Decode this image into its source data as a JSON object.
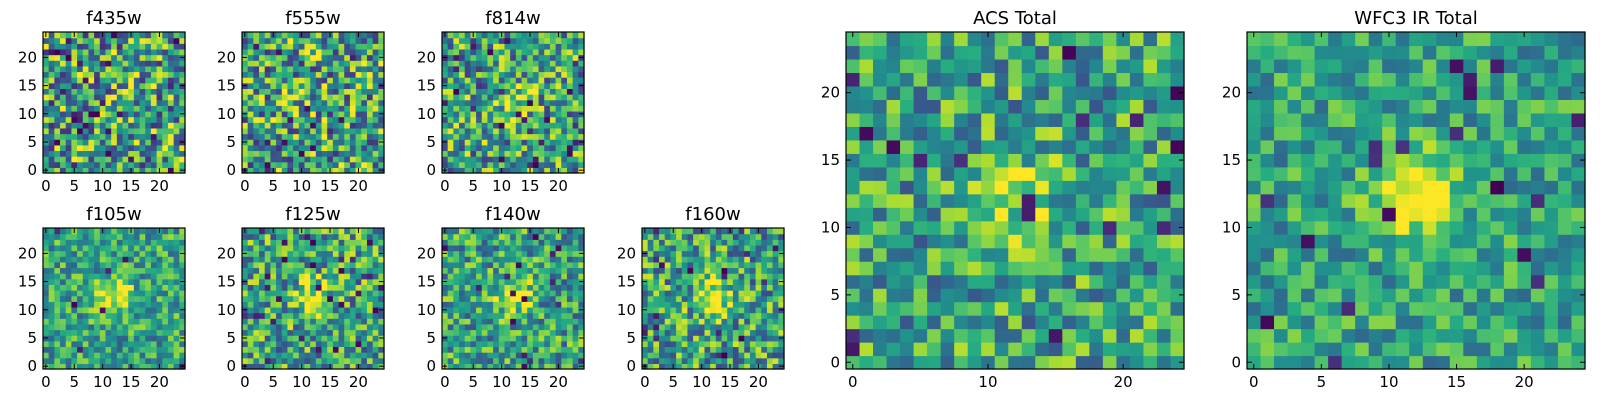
{
  "figure": {
    "colormap": "viridis",
    "background": "#ffffff"
  },
  "chart_data": [
    {
      "type": "heatmap",
      "title": "f435w",
      "xlim": [
        0,
        25
      ],
      "ylim": [
        0,
        25
      ],
      "xticks": [
        0,
        5,
        10,
        15,
        20
      ],
      "yticks": [
        0,
        5,
        10,
        15,
        20
      ],
      "source_peak": 0.0,
      "noise": 0.55,
      "dark_pixels": 0.05,
      "seed": 11
    },
    {
      "type": "heatmap",
      "title": "f555w",
      "xlim": [
        0,
        25
      ],
      "ylim": [
        0,
        25
      ],
      "xticks": [
        0,
        5,
        10,
        15,
        20
      ],
      "yticks": [
        0,
        5,
        10,
        15,
        20
      ],
      "source_peak": 0.05,
      "noise": 0.55,
      "dark_pixels": 0.02,
      "seed": 23
    },
    {
      "type": "heatmap",
      "title": "f814w",
      "xlim": [
        0,
        25
      ],
      "ylim": [
        0,
        25
      ],
      "xticks": [
        0,
        5,
        10,
        15,
        20
      ],
      "yticks": [
        0,
        5,
        10,
        15,
        20
      ],
      "source_peak": 0.3,
      "noise": 0.5,
      "dark_pixels": 0.03,
      "seed": 37
    },
    {
      "type": "heatmap",
      "title": "f105w",
      "xlim": [
        0,
        25
      ],
      "ylim": [
        0,
        25
      ],
      "xticks": [
        0,
        5,
        10,
        15,
        20
      ],
      "yticks": [
        0,
        5,
        10,
        15,
        20
      ],
      "source_peak": 0.45,
      "noise": 0.35,
      "dark_pixels": 0.01,
      "seed": 41
    },
    {
      "type": "heatmap",
      "title": "f125w",
      "xlim": [
        0,
        25
      ],
      "ylim": [
        0,
        25
      ],
      "xticks": [
        0,
        5,
        10,
        15,
        20
      ],
      "yticks": [
        0,
        5,
        10,
        15,
        20
      ],
      "source_peak": 0.4,
      "noise": 0.45,
      "dark_pixels": 0.04,
      "seed": 53
    },
    {
      "type": "heatmap",
      "title": "f140w",
      "xlim": [
        0,
        25
      ],
      "ylim": [
        0,
        25
      ],
      "xticks": [
        0,
        5,
        10,
        15,
        20
      ],
      "yticks": [
        0,
        5,
        10,
        15,
        20
      ],
      "source_peak": 0.45,
      "noise": 0.4,
      "dark_pixels": 0.02,
      "seed": 67
    },
    {
      "type": "heatmap",
      "title": "f160w",
      "xlim": [
        0,
        25
      ],
      "ylim": [
        0,
        25
      ],
      "xticks": [
        0,
        5,
        10,
        15,
        20
      ],
      "yticks": [
        0,
        5,
        10,
        15,
        20
      ],
      "source_peak": 0.45,
      "noise": 0.45,
      "dark_pixels": 0.04,
      "seed": 79
    },
    {
      "type": "heatmap",
      "title": "ACS Total",
      "xlim": [
        0,
        25
      ],
      "ylim": [
        0,
        25
      ],
      "xticks": [
        0,
        10,
        20
      ],
      "yticks": [
        0,
        5,
        10,
        15,
        20
      ],
      "source_peak": 0.35,
      "noise": 0.4,
      "dark_pixels": 0.025,
      "seed": 83
    },
    {
      "type": "heatmap",
      "title": "WFC3 IR Total",
      "xlim": [
        0,
        25
      ],
      "ylim": [
        0,
        25
      ],
      "xticks": [
        0,
        5,
        10,
        15,
        20
      ],
      "yticks": [
        0,
        5,
        10,
        15,
        20
      ],
      "source_peak": 0.55,
      "noise": 0.3,
      "dark_pixels": 0.03,
      "seed": 97
    }
  ]
}
